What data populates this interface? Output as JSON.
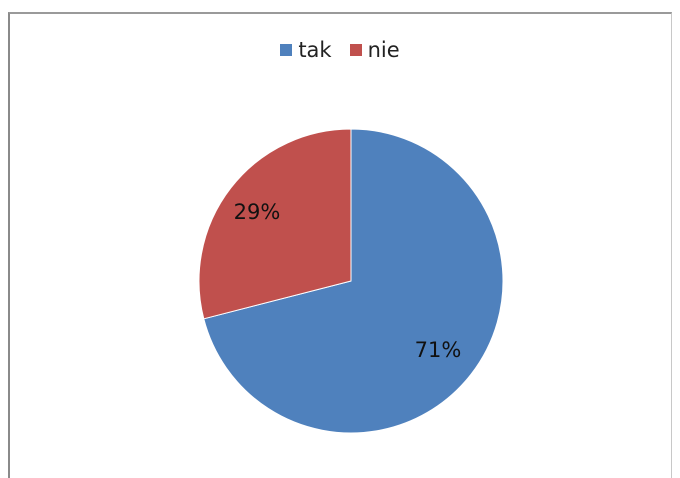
{
  "chart_data": {
    "type": "pie",
    "title": "",
    "categories": [
      "tak",
      "nie"
    ],
    "values": [
      71,
      29
    ],
    "labels": [
      "71%",
      "29%"
    ],
    "colors": [
      "#4f81bd",
      "#c0504d"
    ],
    "legend": {
      "placement": "top",
      "entries": [
        {
          "label": "tak",
          "color": "#4f81bd"
        },
        {
          "label": "nie",
          "color": "#c0504d"
        }
      ]
    }
  }
}
